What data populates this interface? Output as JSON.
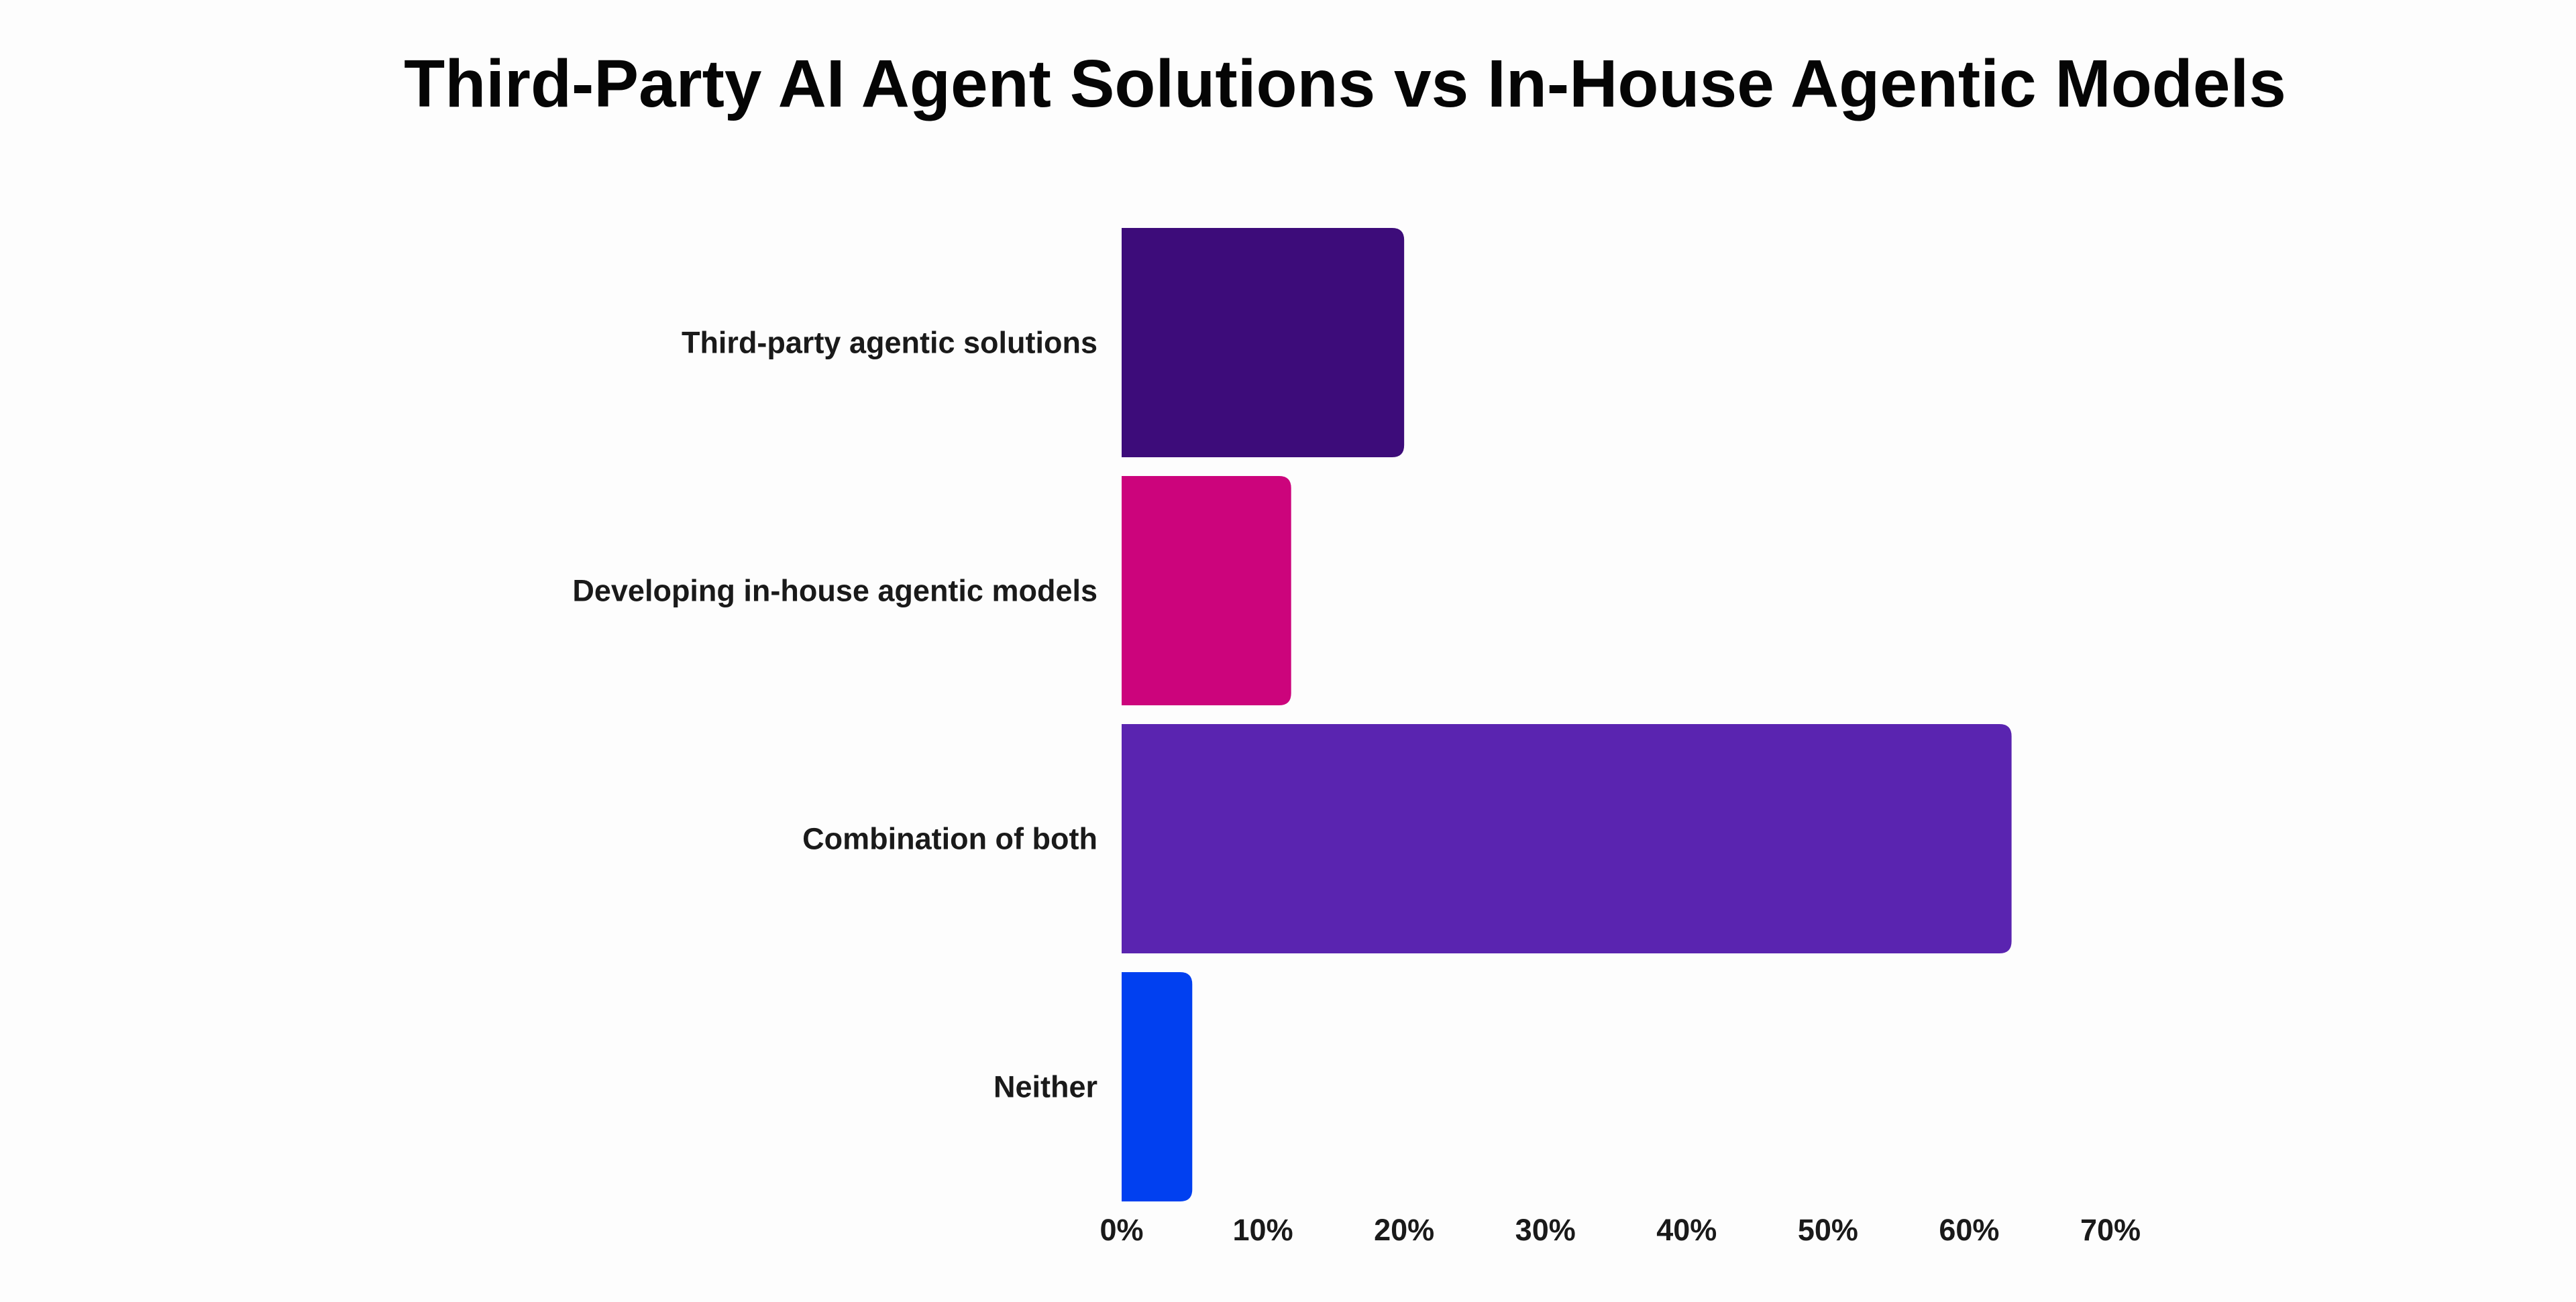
{
  "chart_data": {
    "type": "bar",
    "orientation": "horizontal",
    "title": "Third-Party AI Agent Solutions vs In-House Agentic Models",
    "xlabel": "",
    "ylabel": "",
    "categories": [
      "Third-party agentic solutions",
      "Developing in-house agentic models",
      "Combination of both",
      "Neither"
    ],
    "values": [
      20,
      12,
      63,
      5
    ],
    "unit": "%",
    "xlim": [
      0,
      70
    ],
    "x_ticks": [
      "0%",
      "10%",
      "20%",
      "30%",
      "40%",
      "50%",
      "60%",
      "70%"
    ],
    "colors": [
      "#3d0c7a",
      "#cc047c",
      "#5a24b0",
      "#0140f0"
    ],
    "grid": false,
    "legend": "none"
  }
}
